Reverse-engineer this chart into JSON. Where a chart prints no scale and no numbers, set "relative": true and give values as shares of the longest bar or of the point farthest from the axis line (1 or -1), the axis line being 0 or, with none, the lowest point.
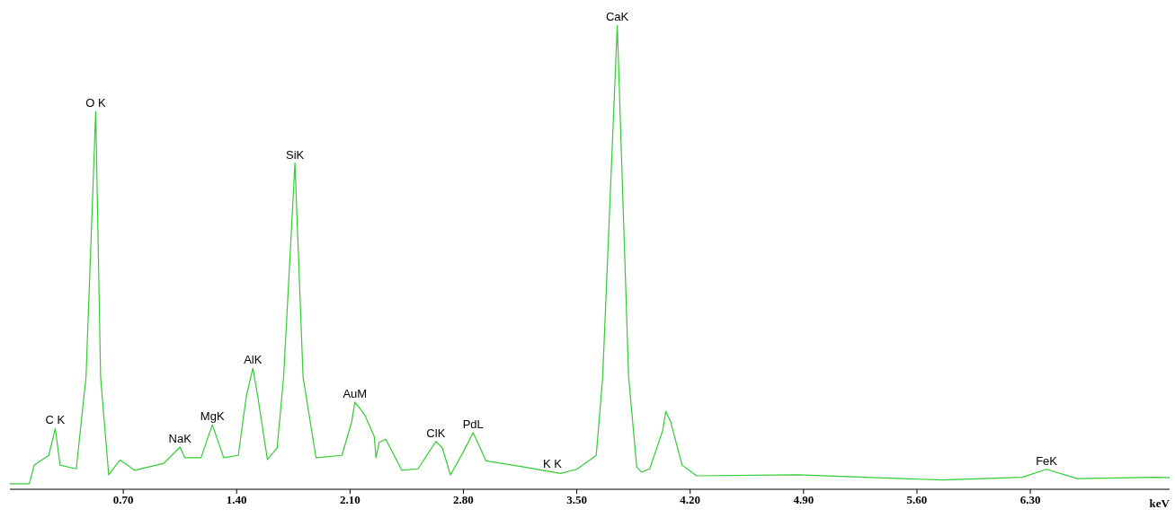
{
  "chart_data": {
    "type": "line",
    "relative": true,
    "xlabel": "keV",
    "color": "#33cc33",
    "marker": "none",
    "xlim": [
      0,
      7.16
    ],
    "xticks": [
      {
        "value": 0.7,
        "label": "0.70"
      },
      {
        "value": 1.4,
        "label": "1.40"
      },
      {
        "value": 2.1,
        "label": "2.10"
      },
      {
        "value": 2.8,
        "label": "2.80"
      },
      {
        "value": 3.5,
        "label": "3.50"
      },
      {
        "value": 4.2,
        "label": "4.20"
      },
      {
        "value": 4.9,
        "label": "4.90"
      },
      {
        "value": 5.6,
        "label": "5.60"
      },
      {
        "value": 6.3,
        "label": "6.30"
      }
    ],
    "x": [
      0,
      0.12,
      0.15,
      0.24,
      0.28,
      0.31,
      0.41,
      0.47,
      0.53,
      0.56,
      0.61,
      0.68,
      0.77,
      0.95,
      1.05,
      1.08,
      1.18,
      1.25,
      1.32,
      1.41,
      1.46,
      1.5,
      1.53,
      1.59,
      1.65,
      1.69,
      1.76,
      1.81,
      1.89,
      2.05,
      2.11,
      2.13,
      2.19,
      2.25,
      2.26,
      2.28,
      2.32,
      2.42,
      2.52,
      2.63,
      2.67,
      2.72,
      2.8,
      2.86,
      2.94,
      3.17,
      3.4,
      3.5,
      3.62,
      3.66,
      3.75,
      3.82,
      3.87,
      3.9,
      3.95,
      4.03,
      4.05,
      4.08,
      4.15,
      4.24,
      4.86,
      5.76,
      6.25,
      6.4,
      6.59,
      7.09,
      7.16
    ],
    "values": [
      0.012,
      0.012,
      0.052,
      0.073,
      0.131,
      0.052,
      0.044,
      0.242,
      0.814,
      0.242,
      0.031,
      0.063,
      0.041,
      0.056,
      0.091,
      0.068,
      0.068,
      0.139,
      0.068,
      0.073,
      0.201,
      0.261,
      0.201,
      0.064,
      0.089,
      0.242,
      0.703,
      0.242,
      0.068,
      0.073,
      0.145,
      0.188,
      0.161,
      0.113,
      0.068,
      0.101,
      0.108,
      0.041,
      0.044,
      0.103,
      0.089,
      0.031,
      0.081,
      0.122,
      0.061,
      0.048,
      0.034,
      0.043,
      0.073,
      0.242,
      1.0,
      0.242,
      0.048,
      0.037,
      0.044,
      0.126,
      0.168,
      0.145,
      0.052,
      0.029,
      0.031,
      0.02,
      0.026,
      0.043,
      0.023,
      0.026,
      0.025
    ],
    "annotations": [
      {
        "text": "C K",
        "x": 0.28,
        "y": 0.131
      },
      {
        "text": "O K",
        "x": 0.53,
        "y": 0.814
      },
      {
        "text": "NaK",
        "x": 1.05,
        "y": 0.091
      },
      {
        "text": "MgK",
        "x": 1.25,
        "y": 0.139
      },
      {
        "text": "AlK",
        "x": 1.5,
        "y": 0.261
      },
      {
        "text": "SiK",
        "x": 1.76,
        "y": 0.703
      },
      {
        "text": "AuM",
        "x": 2.13,
        "y": 0.188
      },
      {
        "text": "ClK",
        "x": 2.63,
        "y": 0.103
      },
      {
        "text": "PdL",
        "x": 2.86,
        "y": 0.122
      },
      {
        "text": "K K",
        "x": 3.35,
        "y": 0.036
      },
      {
        "text": "CaK",
        "x": 3.75,
        "y": 1.0
      },
      {
        "text": "FeK",
        "x": 6.4,
        "y": 0.043
      }
    ]
  }
}
